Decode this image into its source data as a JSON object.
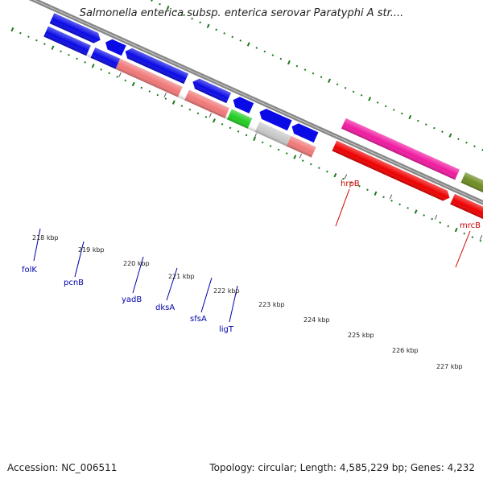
{
  "title": "Salmonella enterica subsp. enterica serovar Paratyphi A str....",
  "footer": {
    "accession": "Accession: NC_006511",
    "topology": "Topology: circular; Length: 4,585,229 bp; Genes: 4,232"
  },
  "kbp_ticks": [
    "218 kbp",
    "219 kbp",
    "220 kbp",
    "221 kbp",
    "222 kbp",
    "223 kbp",
    "224 kbp",
    "225 kbp",
    "226 kbp",
    "227 kbp"
  ],
  "gene_labels": [
    {
      "name": "folK",
      "color": "#0000aa"
    },
    {
      "name": "pcnB",
      "color": "#0000aa"
    },
    {
      "name": "yadB",
      "color": "#0000aa"
    },
    {
      "name": "dksA",
      "color": "#0000aa"
    },
    {
      "name": "sfsA",
      "color": "#0000aa"
    },
    {
      "name": "ligT",
      "color": "#0000aa"
    },
    {
      "name": "hrpB",
      "color": "#cc0000"
    },
    {
      "name": "mrcB",
      "color": "#cc0000"
    }
  ],
  "colors": {
    "blue_gene": "#0a0ae6",
    "pink_gene": "#f07878",
    "green_gene": "#22cc22",
    "gray_gene": "#c8c8c8",
    "magenta_gene": "#f01aa0",
    "red_gene": "#ee0000",
    "olive_gene": "#6e8c22",
    "backbone": "#888888",
    "gc_ticks": "#1a7a1a"
  }
}
